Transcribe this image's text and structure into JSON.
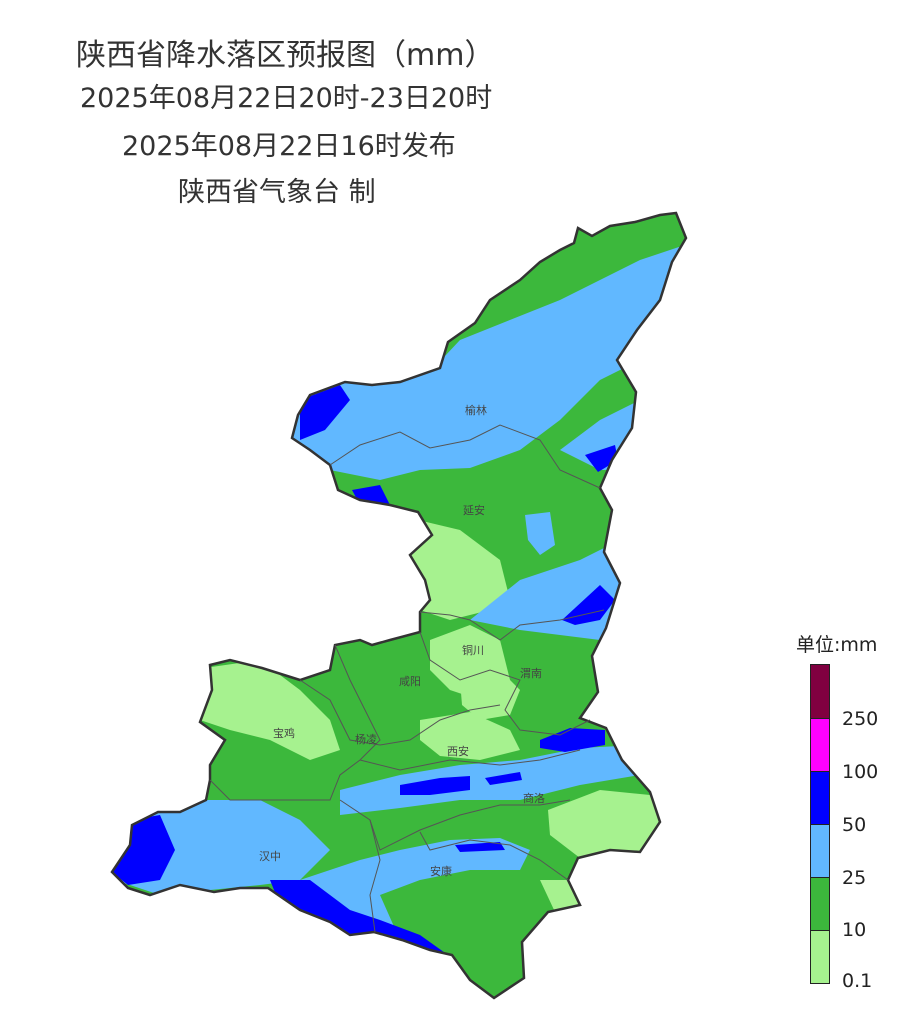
{
  "title": {
    "line1": "陕西省降水落区预报图（mm）",
    "line2": "2025年08月22日20时-23日20时",
    "line3": "2025年08月22日16时发布",
    "line4": "陕西省气象台 制"
  },
  "cities": [
    "榆林",
    "延安",
    "铜川",
    "咸阳",
    "渭南",
    "宝鸡",
    "杨凌",
    "西安",
    "商洛",
    "汉中",
    "安康"
  ],
  "legend": {
    "title": "单位:mm",
    "colors": [
      "#800040",
      "#ff00ff",
      "#0000ff",
      "#61b8ff",
      "#3cb83c",
      "#a6f28f"
    ],
    "labels": [
      "250",
      "100",
      "50",
      "25",
      "10",
      "0.1"
    ]
  }
}
